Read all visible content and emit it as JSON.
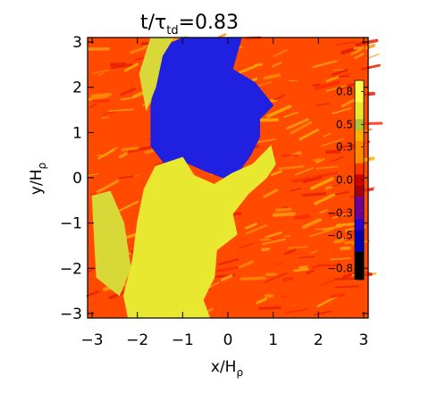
{
  "chart_data": {
    "type": "heatmap",
    "title": {
      "main": "t/τ",
      "sub": "td",
      "value": "=0.83"
    },
    "xlabel": {
      "main": "x/H",
      "sub": "ρ"
    },
    "ylabel": {
      "main": "y/H",
      "sub": "ρ"
    },
    "xlim": [
      -3.1,
      3.1
    ],
    "ylim": [
      -3.1,
      3.1
    ],
    "xticks": [
      -3,
      -2,
      -1,
      0,
      1,
      2,
      3
    ],
    "yticks": [
      -3,
      -2,
      -1,
      0,
      1,
      2,
      3
    ],
    "xtick_labels": [
      "−3",
      "−2",
      "−1",
      "0",
      "1",
      "2",
      "3"
    ],
    "ytick_labels": [
      "−3",
      "−2",
      "−1",
      "0",
      "1",
      "2",
      "3"
    ],
    "colorbar": {
      "range": [
        -0.9,
        0.9
      ],
      "ticks": [
        0.8,
        0.5,
        0.3,
        0.0,
        -0.3,
        -0.5,
        -0.8
      ],
      "tick_labels": [
        "0.8",
        "0.5",
        "0.3",
        "0.0",
        "−0.3",
        "−0.5",
        "−0.8"
      ],
      "levels": [
        {
          "from": 0.7,
          "to": 0.9,
          "color": "#ffff50"
        },
        {
          "from": 0.55,
          "to": 0.7,
          "color": "#e8e830"
        },
        {
          "from": 0.45,
          "to": 0.55,
          "color": "#a8c83c"
        },
        {
          "from": 0.35,
          "to": 0.45,
          "color": "#ffb000"
        },
        {
          "from": 0.15,
          "to": 0.35,
          "color": "#ff8c00"
        },
        {
          "from": 0.05,
          "to": 0.15,
          "color": "#ff3800"
        },
        {
          "from": -0.05,
          "to": 0.05,
          "color": "#d40000"
        },
        {
          "from": -0.15,
          "to": -0.05,
          "color": "#a00010"
        },
        {
          "from": -0.35,
          "to": -0.15,
          "color": "#6c009a"
        },
        {
          "from": -0.45,
          "to": -0.35,
          "color": "#2a00d8"
        },
        {
          "from": -0.65,
          "to": -0.45,
          "color": "#0000b8"
        },
        {
          "from": -0.9,
          "to": -0.65,
          "color": "#000000"
        }
      ]
    },
    "regions": [
      {
        "name": "blue-region",
        "value": -0.6,
        "color": "#2020e0",
        "outline": [
          [
            -1.0,
            3.1
          ],
          [
            0.3,
            3.1
          ],
          [
            0.1,
            2.4
          ],
          [
            0.6,
            2.1
          ],
          [
            1.0,
            1.6
          ],
          [
            0.7,
            1.3
          ],
          [
            0.7,
            0.9
          ],
          [
            0.5,
            0.5
          ],
          [
            0.25,
            0.15
          ],
          [
            -0.1,
            0.0
          ],
          [
            -0.5,
            0.15
          ],
          [
            -0.95,
            0.35
          ],
          [
            -1.35,
            0.25
          ],
          [
            -1.7,
            0.7
          ],
          [
            -1.7,
            1.6
          ],
          [
            -1.55,
            2.3
          ],
          [
            -1.4,
            2.9
          ]
        ]
      },
      {
        "name": "yellow-region",
        "value": 0.8,
        "color": "#e8e830",
        "outline": [
          [
            -2.2,
            -3.1
          ],
          [
            -0.4,
            -3.1
          ],
          [
            -0.55,
            -2.7
          ],
          [
            -0.3,
            -2.2
          ],
          [
            -0.25,
            -1.6
          ],
          [
            0.2,
            -1.25
          ],
          [
            0.1,
            -0.8
          ],
          [
            0.45,
            -0.35
          ],
          [
            0.85,
            0.0
          ],
          [
            1.05,
            0.3
          ],
          [
            0.95,
            0.7
          ],
          [
            0.55,
            0.3
          ],
          [
            0.1,
            0.1
          ],
          [
            -0.3,
            -0.15
          ],
          [
            -0.75,
            0.05
          ],
          [
            -1.0,
            0.45
          ],
          [
            -1.6,
            0.25
          ],
          [
            -1.85,
            -0.25
          ],
          [
            -2.0,
            -1.0
          ],
          [
            -2.1,
            -1.8
          ],
          [
            -2.3,
            -2.6
          ]
        ]
      },
      {
        "name": "yellow-strip-left",
        "value": 0.6,
        "color": "#d8d838",
        "outline": [
          [
            -3.0,
            -0.4
          ],
          [
            -2.6,
            -0.3
          ],
          [
            -2.3,
            -1.0
          ],
          [
            -2.15,
            -2.0
          ],
          [
            -2.4,
            -2.6
          ],
          [
            -2.9,
            -2.2
          ]
        ]
      },
      {
        "name": "yellow-strip-top",
        "value": 0.6,
        "color": "#d8d838",
        "outline": [
          [
            -1.7,
            3.1
          ],
          [
            -1.2,
            3.1
          ],
          [
            -1.45,
            2.7
          ],
          [
            -1.6,
            2.0
          ],
          [
            -1.8,
            1.5
          ],
          [
            -1.95,
            2.3
          ]
        ]
      }
    ]
  }
}
